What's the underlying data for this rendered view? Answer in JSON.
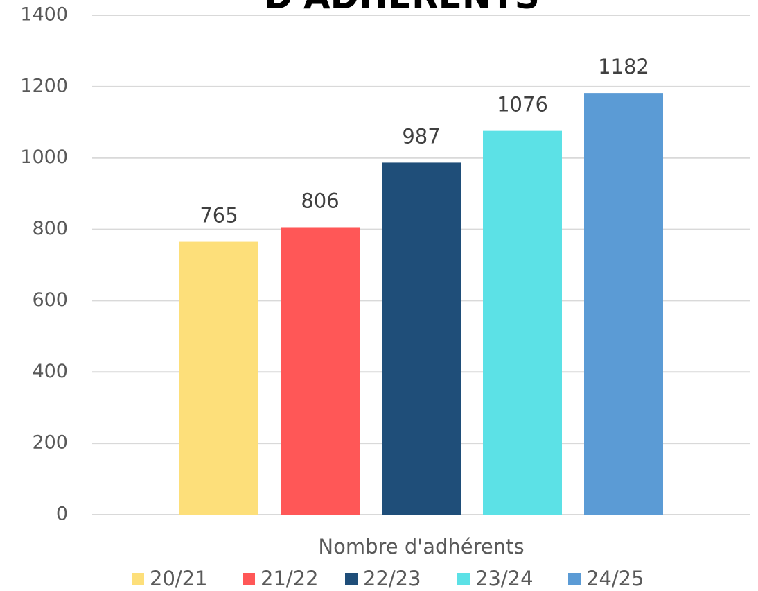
{
  "chart_data": {
    "type": "bar",
    "title": "D'ADHERENTS",
    "categories": [
      "Nombre d'adhérents"
    ],
    "series": [
      {
        "name": "20/21",
        "color": "#fddf7a",
        "values": [
          765
        ]
      },
      {
        "name": "21/22",
        "color": "#ff5757",
        "values": [
          806
        ]
      },
      {
        "name": "22/23",
        "color": "#1f4e79",
        "values": [
          987
        ]
      },
      {
        "name": "23/24",
        "color": "#5ce1e6",
        "values": [
          1076
        ]
      },
      {
        "name": "24/25",
        "color": "#5b9bd5",
        "values": [
          1182
        ]
      }
    ],
    "ylim": [
      0,
      1400
    ],
    "yticks": [
      0,
      200,
      400,
      600,
      800,
      1000,
      1200,
      1400
    ],
    "grid": true,
    "legend": "bottom"
  }
}
